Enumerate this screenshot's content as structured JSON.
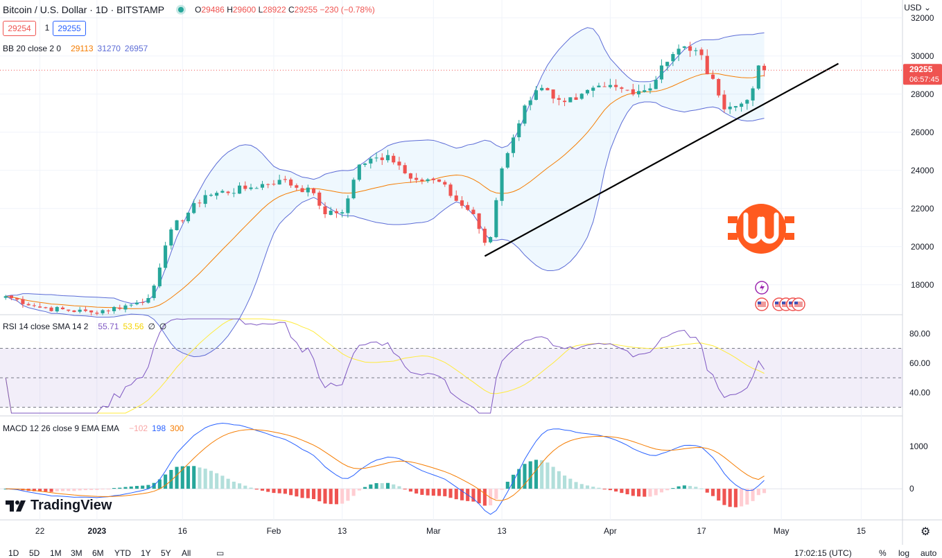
{
  "header": {
    "title": "Bitcoin / U.S. Dollar · 1D · BITSTAMP",
    "ohlc": [
      {
        "k": "O",
        "v": "29486"
      },
      {
        "k": "H",
        "v": "29600"
      },
      {
        "k": "L",
        "v": "28922"
      },
      {
        "k": "C",
        "v": "29255"
      }
    ],
    "change": "−230 (−0.78%)",
    "bid": "29254",
    "qty": "1",
    "ask": "29255",
    "currency": "USD"
  },
  "indicators": {
    "bb": {
      "label": "BB 20 close 2 0",
      "basis": "29113",
      "upper": "31270",
      "lower": "26957"
    },
    "rsi": {
      "label": "RSI 14 close SMA 14 2",
      "value": "55.71",
      "sma": "53.56",
      "z1": "∅",
      "z2": "∅"
    },
    "macd": {
      "label": "MACD 12 26 close 9 EMA EMA",
      "hist": "−102",
      "macd": "198",
      "signal": "300"
    }
  },
  "price_axis": {
    "ticks": [
      "32000",
      "30000",
      "28000",
      "26000",
      "24000",
      "22000",
      "20000",
      "18000"
    ],
    "last_price": "29255",
    "countdown": "06:57:45"
  },
  "rsi_axis": {
    "ticks": [
      "80.00",
      "60.00",
      "40.00"
    ]
  },
  "macd_axis": {
    "ticks": [
      "1000",
      "0"
    ]
  },
  "time_axis": {
    "labels": [
      "22",
      "2023",
      "16",
      "Feb",
      "13",
      "Mar",
      "13",
      "Apr",
      "17",
      "May",
      "15"
    ]
  },
  "branding": {
    "tv": "TradingView"
  },
  "bottom_bar": {
    "ranges": [
      "1D",
      "5D",
      "1M",
      "3M",
      "6M",
      "YTD",
      "1Y",
      "5Y",
      "All"
    ],
    "clock": "17:02:15 (UTC)",
    "pct": "%",
    "log": "log",
    "auto": "auto"
  },
  "colors": {
    "up": "#26a69a",
    "down": "#ef5350",
    "bb_band": "#5b6bd6",
    "bb_basis": "#f57c00",
    "rsi_line": "#7e57c2",
    "rsi_sma": "#ffeb3b",
    "macd_line": "#2962ff",
    "signal_line": "#f57c00",
    "trendline": "#000000",
    "logo": "#ff5a1f"
  },
  "chart_data": {
    "type": "candlestick",
    "title": "Bitcoin / U.S. Dollar · 1D · BITSTAMP",
    "ylim": [
      16500,
      32500
    ],
    "y_ticks": [
      18000,
      20000,
      22000,
      24000,
      26000,
      28000,
      30000,
      32000
    ],
    "x_range": [
      "2022-12-15",
      "2023-05-22"
    ],
    "x_ticks": [
      {
        "date": "2022-12-22",
        "label": "22"
      },
      {
        "date": "2023-01-01",
        "label": "2023"
      },
      {
        "date": "2023-01-16",
        "label": "16"
      },
      {
        "date": "2023-02-01",
        "label": "Feb"
      },
      {
        "date": "2023-02-13",
        "label": "13"
      },
      {
        "date": "2023-03-01",
        "label": "Mar"
      },
      {
        "date": "2023-03-13",
        "label": "13"
      },
      {
        "date": "2023-04-01",
        "label": "Apr"
      },
      {
        "date": "2023-04-17",
        "label": "17"
      },
      {
        "date": "2023-05-01",
        "label": "May"
      },
      {
        "date": "2023-05-15",
        "label": "15"
      }
    ],
    "keypoints_close": [
      [
        "2022-12-16",
        17400
      ],
      [
        "2022-12-22",
        16800
      ],
      [
        "2022-12-31",
        16550
      ],
      [
        "2023-01-07",
        16950
      ],
      [
        "2023-01-10",
        17300
      ],
      [
        "2023-01-12",
        18900
      ],
      [
        "2023-01-14",
        20900
      ],
      [
        "2023-01-20",
        22700
      ],
      [
        "2023-01-28",
        23100
      ],
      [
        "2023-02-02",
        23500
      ],
      [
        "2023-02-08",
        22800
      ],
      [
        "2023-02-10",
        21700
      ],
      [
        "2023-02-13",
        21800
      ],
      [
        "2023-02-16",
        24300
      ],
      [
        "2023-02-21",
        24800
      ],
      [
        "2023-02-26",
        23500
      ],
      [
        "2023-03-02",
        23400
      ],
      [
        "2023-03-05",
        22400
      ],
      [
        "2023-03-08",
        21700
      ],
      [
        "2023-03-10",
        20200
      ],
      [
        "2023-03-11",
        20500
      ],
      [
        "2023-03-13",
        24100
      ],
      [
        "2023-03-17",
        27400
      ],
      [
        "2023-03-19",
        28200
      ],
      [
        "2023-03-21",
        28200
      ],
      [
        "2023-03-23",
        27700
      ],
      [
        "2023-03-26",
        27700
      ],
      [
        "2023-03-31",
        28400
      ],
      [
        "2023-04-04",
        28200
      ],
      [
        "2023-04-08",
        28300
      ],
      [
        "2023-04-10",
        29500
      ],
      [
        "2023-04-14",
        30500
      ],
      [
        "2023-04-16",
        30300
      ],
      [
        "2023-04-19",
        28800
      ],
      [
        "2023-04-21",
        27200
      ],
      [
        "2023-04-24",
        27500
      ],
      [
        "2023-04-26",
        28300
      ],
      [
        "2023-04-27",
        29500
      ],
      [
        "2023-04-28",
        29255
      ]
    ],
    "trendline": [
      [
        "2023-03-10",
        19500
      ],
      [
        "2023-05-11",
        29600
      ]
    ],
    "last": {
      "date": "2023-04-28",
      "open": 29486,
      "high": 29600,
      "low": 28922,
      "close": 29255
    },
    "bb": {
      "period": 20,
      "mult": 2,
      "last": {
        "basis": 29113,
        "upper": 31270,
        "lower": 26957
      }
    },
    "rsi": {
      "period": 14,
      "ylim": [
        26,
        90
      ],
      "bands": [
        30,
        50,
        70
      ],
      "y_ticks": [
        40,
        60,
        80
      ],
      "last": 55.71,
      "sma_last": 53.56
    },
    "macd": {
      "fast": 12,
      "slow": 26,
      "signal": 9,
      "ylim": [
        -700,
        1650
      ],
      "y_ticks": [
        0,
        1000
      ],
      "last": {
        "hist": -102,
        "macd": 198,
        "signal": 300
      }
    }
  }
}
